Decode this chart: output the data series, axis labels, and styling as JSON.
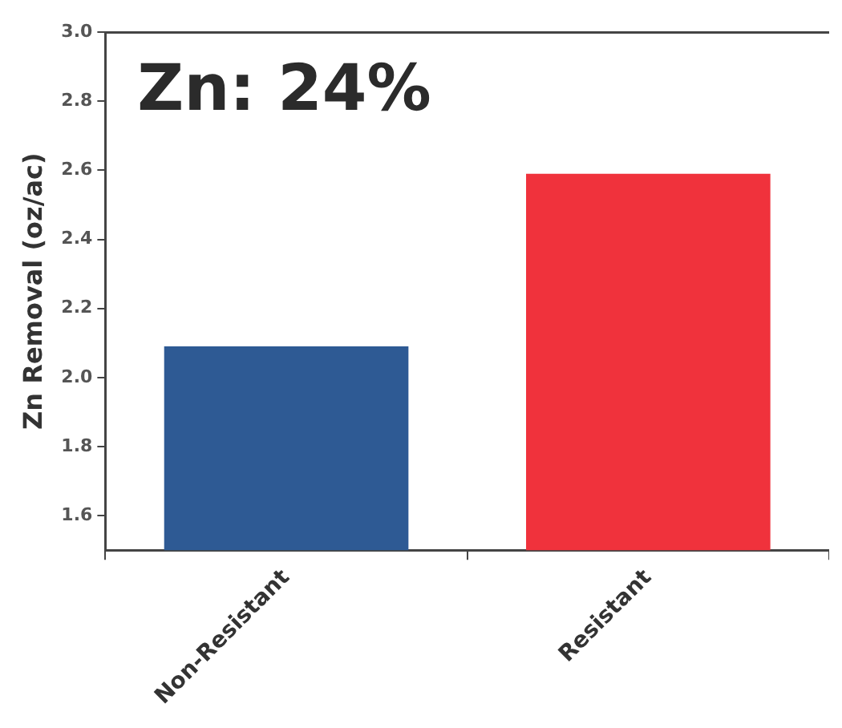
{
  "chart_data": {
    "type": "bar",
    "ylabel": "Zn Removal (oz/ac)",
    "categories": [
      "Non-Resistant",
      "Resistant"
    ],
    "values": [
      2.09,
      2.59
    ],
    "colors": [
      "#2e5a94",
      "#f0323c"
    ],
    "ylim": [
      1.5,
      3.0
    ],
    "yticks": [
      1.6,
      1.8,
      {
        "value": 2,
        "label": "2.0"
      },
      2.2,
      2.4,
      2.6,
      2.8,
      {
        "value": 3,
        "label": "3.0"
      }
    ],
    "grid": false,
    "legend": false,
    "annotations": [
      "Zn: 24%"
    ]
  }
}
